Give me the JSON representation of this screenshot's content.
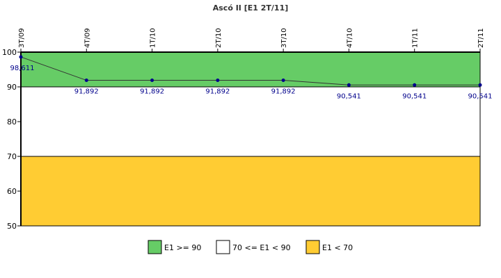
{
  "chart_data": {
    "type": "line",
    "title": "Ascó II [E1 2T/11]",
    "xlabel": "",
    "ylabel": "",
    "categories": [
      "3T/09",
      "4T/09",
      "1T/10",
      "2T/10",
      "3T/10",
      "4T/10",
      "1T/11",
      "2T/11"
    ],
    "series": [
      {
        "values": [
          98.611,
          91.892,
          91.892,
          91.892,
          91.892,
          90.541,
          90.541,
          90.541
        ],
        "labels": [
          "98,611",
          "91,892",
          "91,892",
          "91,892",
          "91,892",
          "90,541",
          "90,541",
          "90,541"
        ],
        "color": "#333333",
        "marker_color": "#00008b"
      }
    ],
    "ylim": [
      50,
      100
    ],
    "yticks": [
      50,
      60,
      70,
      80,
      90,
      100
    ],
    "x_tick_position": "top",
    "bands": [
      {
        "label": "E1 >= 90",
        "from": 90,
        "to": 100,
        "color": "#66cc66"
      },
      {
        "label": "70 <= E1 < 90",
        "from": 70,
        "to": 90,
        "color": "#ffffff"
      },
      {
        "label": "E1 < 70",
        "from": 50,
        "to": 70,
        "color": "#ffcc33"
      }
    ],
    "legend_position": "bottom-center",
    "grid": false
  }
}
